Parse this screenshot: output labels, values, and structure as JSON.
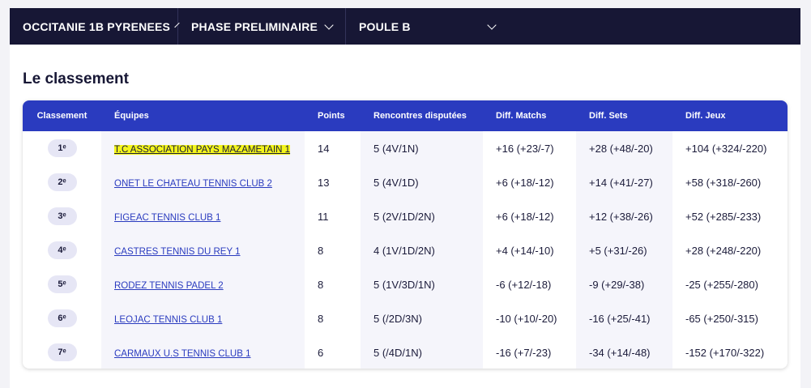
{
  "filters": [
    {
      "label": "OCCITANIE 1B PYRENEES"
    },
    {
      "label": "PHASE PRELIMINAIRE"
    },
    {
      "label": "POULE B"
    }
  ],
  "section_title": "Le classement",
  "table": {
    "headers": [
      "Classement",
      "Équipes",
      "Points",
      "Rencontres disputées",
      "Diff. Matchs",
      "Diff. Sets",
      "Diff. Jeux"
    ],
    "rows": [
      {
        "rank": "1ᵉ",
        "team": "T.C ASSOCIATION PAYS MAZAMETAIN 1",
        "points": "14",
        "rencontres": "5 (4V/1N)",
        "matchs": "+16 (+23/-7)",
        "sets": "+28 (+48/-20)",
        "jeux": "+104 (+324/-220)"
      },
      {
        "rank": "2ᵉ",
        "team": "ONET LE CHATEAU TENNIS CLUB 2",
        "points": "13",
        "rencontres": "5 (4V/1D)",
        "matchs": "+6 (+18/-12)",
        "sets": "+14 (+41/-27)",
        "jeux": "+58 (+318/-260)"
      },
      {
        "rank": "3ᵉ",
        "team": "FIGEAC TENNIS CLUB 1",
        "points": "11",
        "rencontres": "5 (2V/1D/2N)",
        "matchs": "+6 (+18/-12)",
        "sets": "+12 (+38/-26)",
        "jeux": "+52 (+285/-233)"
      },
      {
        "rank": "4ᵉ",
        "team": "CASTRES TENNIS DU REY 1",
        "points": "8",
        "rencontres": "4 (1V/1D/2N)",
        "matchs": "+4 (+14/-10)",
        "sets": "+5 (+31/-26)",
        "jeux": "+28 (+248/-220)"
      },
      {
        "rank": "5ᵉ",
        "team": "RODEZ TENNIS PADEL 2",
        "points": "8",
        "rencontres": "5 (1V/3D/1N)",
        "matchs": "-6 (+12/-18)",
        "sets": "-9 (+29/-38)",
        "jeux": "-25 (+255/-280)"
      },
      {
        "rank": "6ᵉ",
        "team": "LEOJAC TENNIS CLUB 1",
        "points": "8",
        "rencontres": "5 (/2D/3N)",
        "matchs": "-10 (+10/-20)",
        "sets": "-16 (+25/-41)",
        "jeux": "-65 (+250/-315)"
      },
      {
        "rank": "7ᵉ",
        "team": "CARMAUX U.S TENNIS CLUB 1",
        "points": "6",
        "rencontres": "5 (/4D/1N)",
        "matchs": "-16 (+7/-23)",
        "sets": "-34 (+14/-48)",
        "jeux": "-152 (+170/-322)"
      }
    ]
  },
  "colors": {
    "nav_bg": "#171735",
    "header_bg": "#2a3bbf",
    "highlight": "#f3f51a",
    "link": "#2a3bbf"
  }
}
